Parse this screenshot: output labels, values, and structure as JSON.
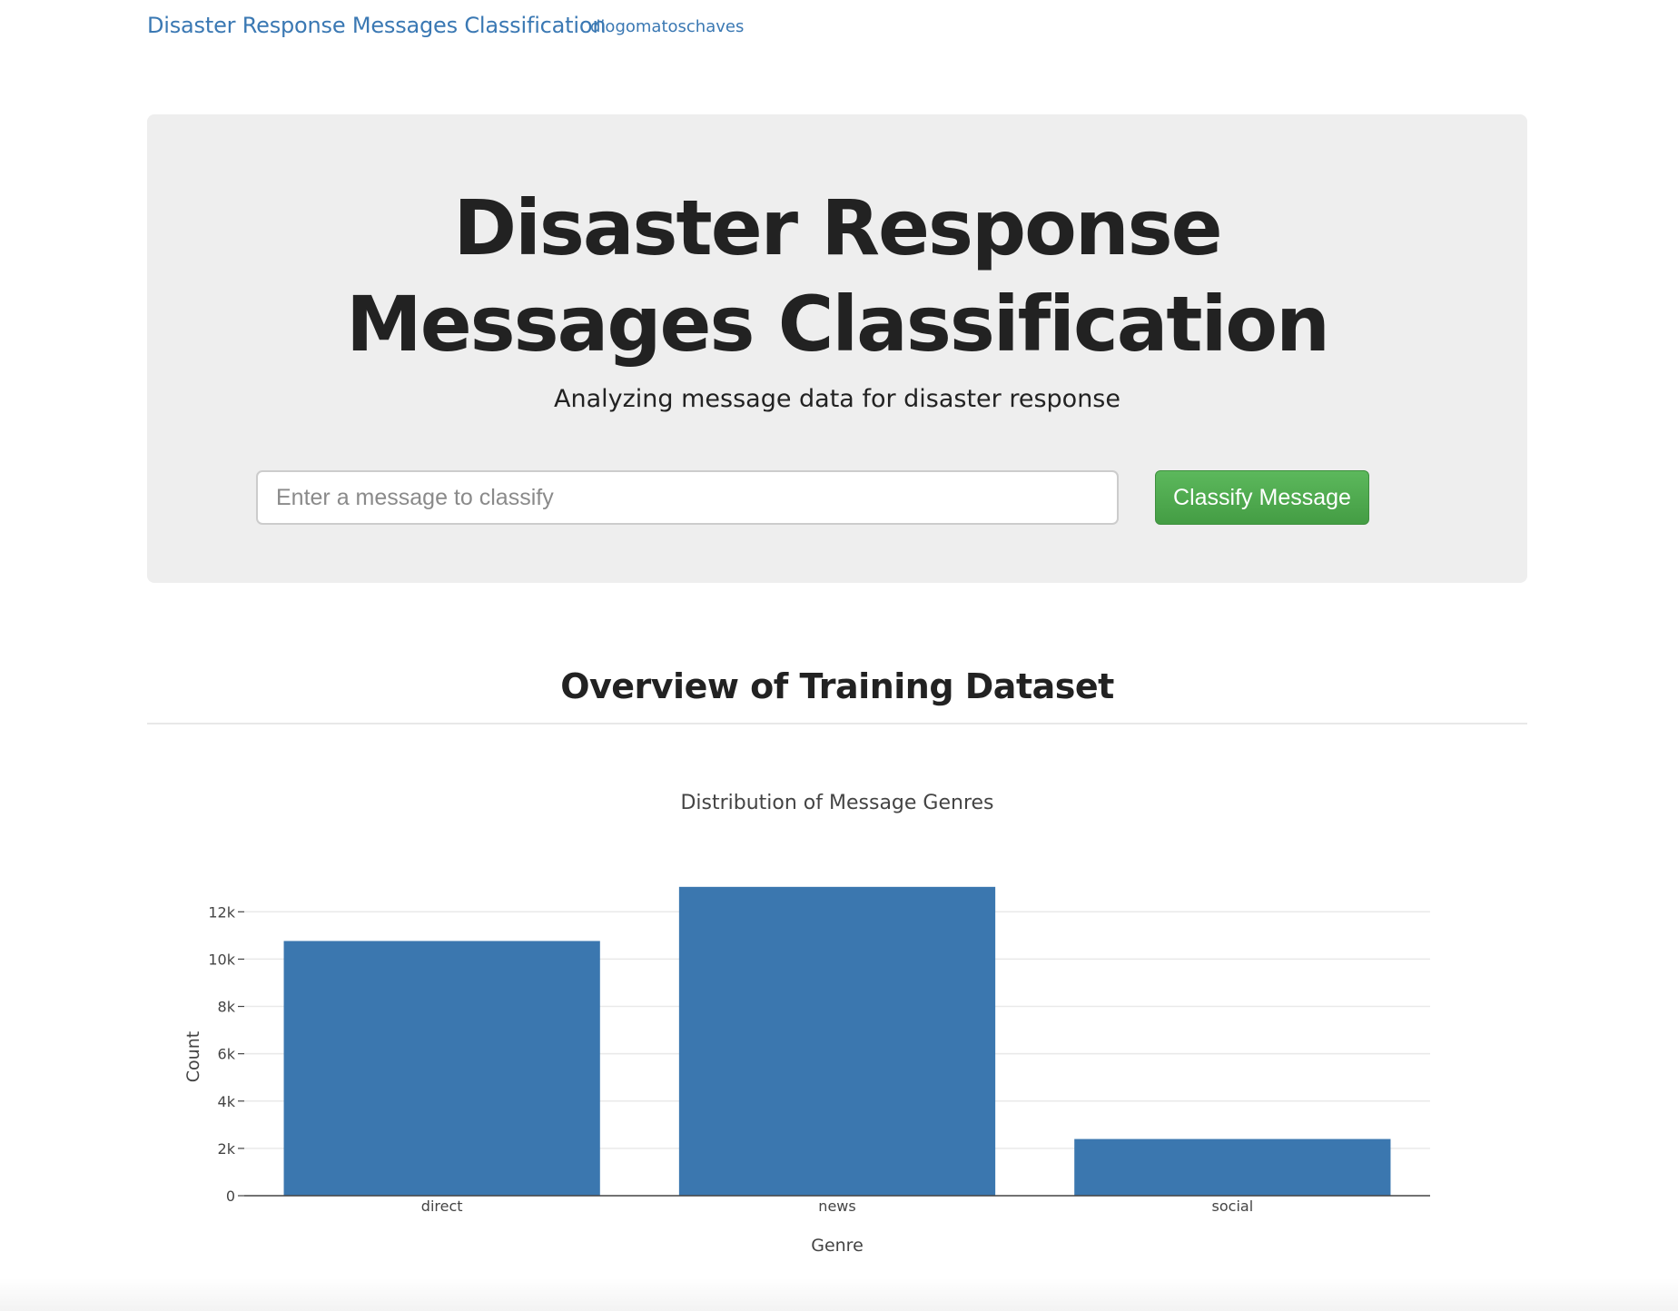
{
  "navbar": {
    "brand": "Disaster Response Messages Classification",
    "user_link": "diogomatoschaves"
  },
  "hero": {
    "title_line1": "Disaster Response",
    "title_line2": "Messages Classification",
    "subtitle": "Analyzing message data for disaster response",
    "input_placeholder": "Enter a message to classify",
    "input_value": "",
    "button_label": "Classify Message"
  },
  "overview": {
    "title": "Overview of Training Dataset"
  },
  "colors": {
    "bar": "#3b77af",
    "brand": "#3a78b3",
    "button": "#5cb85c"
  },
  "chart_data": {
    "type": "bar",
    "title": "Distribution of Message Genres",
    "xlabel": "Genre",
    "ylabel": "Count",
    "categories": [
      "direct",
      "news",
      "social"
    ],
    "values": [
      10766,
      13054,
      2396
    ],
    "ylim": [
      0,
      13700
    ],
    "yticks": [
      0,
      2000,
      4000,
      6000,
      8000,
      10000,
      12000
    ],
    "ytick_labels": [
      "0",
      "2k",
      "4k",
      "6k",
      "8k",
      "10k",
      "12k"
    ],
    "grid": true,
    "legend": "none"
  }
}
